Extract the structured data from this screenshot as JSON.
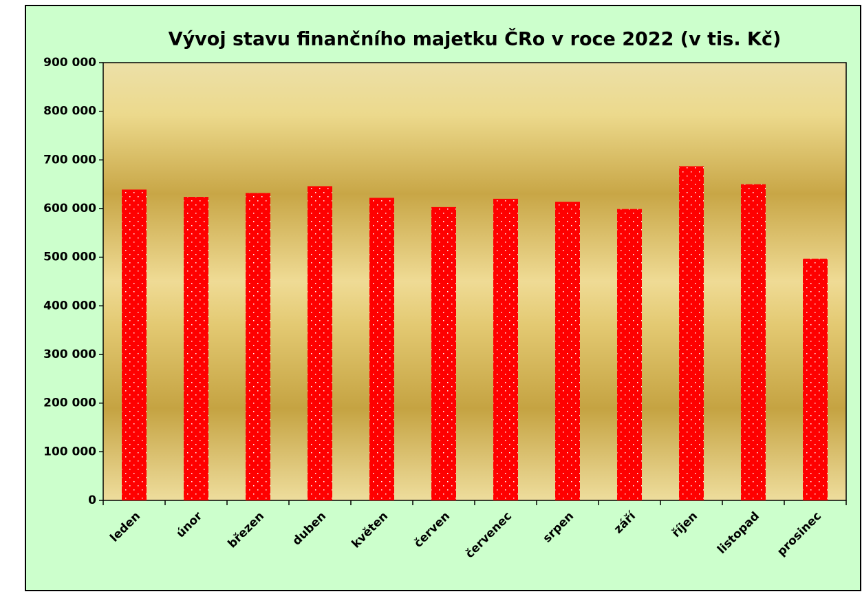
{
  "chart_data": {
    "type": "bar",
    "title": "Vývoj stavu finančního majetku ČRo v roce 2022  (v tis. Kč)",
    "categories": [
      "leden",
      "únor",
      "březen",
      "duben",
      "květen",
      "červen",
      "červenec",
      "srpen",
      "září",
      "říjen",
      "listopad",
      "prosinec"
    ],
    "values": [
      639000,
      624000,
      632000,
      646000,
      622000,
      603000,
      620000,
      614000,
      599000,
      687000,
      650000,
      497000
    ],
    "color": "#ff0000",
    "ylim": [
      0,
      900000
    ],
    "yticks": [
      0,
      {
        "value": 100000,
        "label": "100 000"
      },
      {
        "value": 200000,
        "label": "200 000"
      },
      {
        "value": 300000,
        "label": "300 000"
      },
      {
        "value": 400000,
        "label": "400 000"
      },
      {
        "value": 500000,
        "label": "500 000"
      },
      {
        "value": 600000,
        "label": "600 000"
      },
      {
        "value": 700000,
        "label": "700 000"
      },
      {
        "value": 800000,
        "label": "800 000"
      },
      {
        "value": 900000,
        "label": "900 000"
      }
    ],
    "grid": false
  }
}
